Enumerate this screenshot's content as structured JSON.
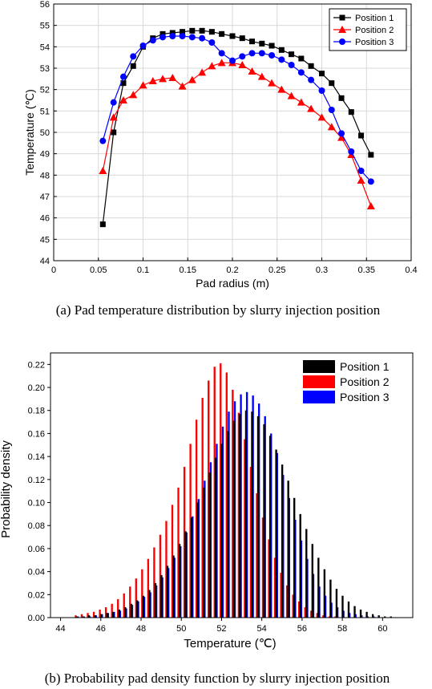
{
  "chart_data": [
    {
      "type": "line",
      "xlabel": "Pad radius (m)",
      "ylabel": "Temperature (℃)",
      "xlim": [
        0,
        0.4
      ],
      "ylim": [
        44,
        56
      ],
      "xticks": [
        "0",
        "0.05",
        "0.1",
        "0.15",
        "0.2",
        "0.25",
        "0.3",
        "0.35",
        "0.4"
      ],
      "yticks": [
        "44",
        "45",
        "46",
        "47",
        "48",
        "49",
        "50",
        "51",
        "52",
        "53",
        "54",
        "55",
        "56"
      ],
      "grid": true,
      "legend_position": "top-right",
      "caption": "(a) Pad temperature distribution by slurry injection position",
      "series": [
        {
          "name": "Position 1",
          "color": "#000000",
          "marker": "square",
          "x": [
            0.055,
            0.067,
            0.078,
            0.089,
            0.1,
            0.111,
            0.122,
            0.133,
            0.144,
            0.155,
            0.166,
            0.177,
            0.188,
            0.2,
            0.211,
            0.222,
            0.233,
            0.244,
            0.255,
            0.266,
            0.277,
            0.288,
            0.3,
            0.311,
            0.322,
            0.333,
            0.344,
            0.355
          ],
          "y": [
            45.7,
            50.0,
            52.3,
            53.1,
            54.0,
            54.4,
            54.6,
            54.65,
            54.7,
            54.75,
            54.75,
            54.7,
            54.6,
            54.5,
            54.4,
            54.25,
            54.15,
            54.05,
            53.85,
            53.65,
            53.45,
            53.1,
            52.75,
            52.3,
            51.6,
            50.95,
            49.85,
            48.95
          ]
        },
        {
          "name": "Position 2",
          "color": "#ff0000",
          "marker": "triangle",
          "x": [
            0.055,
            0.067,
            0.078,
            0.089,
            0.1,
            0.111,
            0.122,
            0.133,
            0.144,
            0.155,
            0.166,
            0.177,
            0.188,
            0.2,
            0.211,
            0.222,
            0.233,
            0.244,
            0.255,
            0.266,
            0.277,
            0.288,
            0.3,
            0.311,
            0.322,
            0.333,
            0.344,
            0.355
          ],
          "y": [
            48.2,
            50.7,
            51.5,
            51.75,
            52.2,
            52.4,
            52.5,
            52.55,
            52.15,
            52.45,
            52.8,
            53.1,
            53.25,
            53.25,
            53.15,
            52.85,
            52.6,
            52.3,
            52.0,
            51.7,
            51.4,
            51.1,
            50.7,
            50.25,
            49.75,
            48.95,
            47.75,
            46.55
          ]
        },
        {
          "name": "Position 3",
          "color": "#0000ff",
          "marker": "circle",
          "x": [
            0.055,
            0.067,
            0.078,
            0.089,
            0.1,
            0.111,
            0.122,
            0.133,
            0.144,
            0.155,
            0.166,
            0.177,
            0.188,
            0.2,
            0.211,
            0.222,
            0.233,
            0.244,
            0.255,
            0.266,
            0.277,
            0.288,
            0.3,
            0.311,
            0.322,
            0.333,
            0.344,
            0.355
          ],
          "y": [
            49.6,
            51.4,
            52.6,
            53.55,
            54.05,
            54.3,
            54.45,
            54.5,
            54.5,
            54.45,
            54.4,
            54.2,
            53.7,
            53.35,
            53.55,
            53.7,
            53.7,
            53.6,
            53.4,
            53.15,
            52.8,
            52.45,
            51.95,
            51.05,
            49.95,
            49.1,
            48.2,
            47.7
          ]
        }
      ]
    },
    {
      "type": "bar",
      "xlabel": "Temperature (℃)",
      "ylabel": "Probability density",
      "xlim": [
        43.5,
        61.5
      ],
      "ylim": [
        0,
        0.23
      ],
      "xticks": [
        "44",
        "46",
        "48",
        "50",
        "52",
        "54",
        "56",
        "58",
        "60"
      ],
      "yticks": [
        "0.00",
        "0.02",
        "0.04",
        "0.06",
        "0.08",
        "0.10",
        "0.12",
        "0.14",
        "0.16",
        "0.18",
        "0.20",
        "0.22"
      ],
      "grid": false,
      "legend_position": "top-right",
      "caption": "(b) Probability pad density function by slurry injection position",
      "categories": [
        44.8,
        45.1,
        45.4,
        45.7,
        46.0,
        46.3,
        46.6,
        46.9,
        47.2,
        47.5,
        47.8,
        48.1,
        48.4,
        48.7,
        49.0,
        49.3,
        49.6,
        49.9,
        50.2,
        50.5,
        50.8,
        51.1,
        51.4,
        51.7,
        52.0,
        52.3,
        52.6,
        52.9,
        53.2,
        53.5,
        53.8,
        54.1,
        54.4,
        54.7,
        55.0,
        55.3,
        55.6,
        55.9,
        56.2,
        56.5,
        56.8,
        57.1,
        57.4,
        57.7,
        58.0,
        58.3,
        58.6,
        58.9,
        59.2,
        59.5,
        59.8,
        60.1,
        60.4
      ],
      "series": [
        {
          "name": "Position 1",
          "color": "#000000",
          "values": [
            0.001,
            0.001,
            0.002,
            0.002,
            0.003,
            0.004,
            0.005,
            0.007,
            0.009,
            0.012,
            0.015,
            0.019,
            0.024,
            0.03,
            0.037,
            0.045,
            0.054,
            0.064,
            0.075,
            0.087,
            0.1,
            0.113,
            0.126,
            0.139,
            0.151,
            0.162,
            0.171,
            0.177,
            0.18,
            0.179,
            0.175,
            0.168,
            0.158,
            0.146,
            0.133,
            0.119,
            0.104,
            0.09,
            0.077,
            0.064,
            0.052,
            0.042,
            0.033,
            0.025,
            0.019,
            0.014,
            0.01,
            0.007,
            0.005,
            0.003,
            0.002,
            0.001,
            0.001
          ]
        },
        {
          "name": "Position 2",
          "color": "#ff0000",
          "values": [
            0.002,
            0.003,
            0.004,
            0.005,
            0.007,
            0.009,
            0.012,
            0.016,
            0.021,
            0.027,
            0.034,
            0.042,
            0.051,
            0.061,
            0.072,
            0.084,
            0.098,
            0.113,
            0.131,
            0.151,
            0.172,
            0.191,
            0.206,
            0.218,
            0.221,
            0.213,
            0.198,
            0.178,
            0.155,
            0.131,
            0.108,
            0.087,
            0.068,
            0.052,
            0.039,
            0.028,
            0.02,
            0.014,
            0.009,
            0.006,
            0.004,
            0.002,
            0.001,
            0.001,
            0.0,
            0.0,
            0.0,
            0.0,
            0.0,
            0.0,
            0.0,
            0.0,
            0.0
          ]
        },
        {
          "name": "Position 3",
          "color": "#0000ff",
          "values": [
            0.001,
            0.001,
            0.001,
            0.002,
            0.003,
            0.004,
            0.005,
            0.006,
            0.008,
            0.011,
            0.014,
            0.018,
            0.022,
            0.028,
            0.035,
            0.043,
            0.052,
            0.062,
            0.074,
            0.088,
            0.103,
            0.119,
            0.135,
            0.151,
            0.166,
            0.179,
            0.188,
            0.194,
            0.196,
            0.193,
            0.186,
            0.175,
            0.16,
            0.143,
            0.124,
            0.104,
            0.085,
            0.067,
            0.051,
            0.038,
            0.027,
            0.019,
            0.013,
            0.009,
            0.006,
            0.004,
            0.003,
            0.002,
            0.001,
            0.001,
            0.0,
            0.0,
            0.0
          ]
        }
      ]
    }
  ]
}
